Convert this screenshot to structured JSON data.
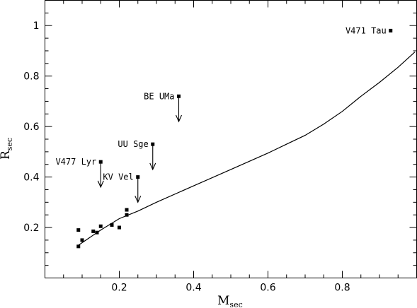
{
  "chart_data": {
    "type": "scatter",
    "xlabel": "M",
    "xlabel_sub": "sec",
    "ylabel": "R",
    "ylabel_sub": "sec",
    "xlim": [
      0.0,
      1.0
    ],
    "ylim": [
      0.0,
      1.1
    ],
    "xticks": [
      0.2,
      0.4,
      0.6,
      0.8
    ],
    "xtick_labels": [
      "0.2",
      "0.4",
      "0.6",
      "0.8"
    ],
    "yticks": [
      0.2,
      0.4,
      0.6,
      0.8,
      1.0
    ],
    "ytick_labels": [
      "0.2",
      "0.4",
      "0.6",
      "0.8",
      "1"
    ],
    "xminor": 0.05,
    "yminor": 0.05,
    "grid": false,
    "points": [
      {
        "x": 0.09,
        "y": 0.19
      },
      {
        "x": 0.09,
        "y": 0.125
      },
      {
        "x": 0.1,
        "y": 0.15
      },
      {
        "x": 0.13,
        "y": 0.185
      },
      {
        "x": 0.14,
        "y": 0.18
      },
      {
        "x": 0.15,
        "y": 0.205
      },
      {
        "x": 0.18,
        "y": 0.21
      },
      {
        "x": 0.2,
        "y": 0.2
      },
      {
        "x": 0.22,
        "y": 0.25
      },
      {
        "x": 0.22,
        "y": 0.27
      }
    ],
    "labeled_points": [
      {
        "label": "V471 Tau",
        "x": 0.93,
        "y": 0.98,
        "upper_limit": false
      },
      {
        "label": "BE UMa",
        "x": 0.36,
        "y": 0.72,
        "upper_limit": true
      },
      {
        "label": "UU Sge",
        "x": 0.29,
        "y": 0.53,
        "upper_limit": true
      },
      {
        "label": "V477 Lyr",
        "x": 0.15,
        "y": 0.46,
        "upper_limit": true
      },
      {
        "label": "KV Vel",
        "x": 0.25,
        "y": 0.4,
        "upper_limit": true
      }
    ],
    "curve": {
      "x": [
        0.09,
        0.15,
        0.2,
        0.25,
        0.3,
        0.4,
        0.5,
        0.6,
        0.65,
        0.7,
        0.75,
        0.8,
        0.85,
        0.9,
        0.95,
        0.995
      ],
      "y": [
        0.13,
        0.19,
        0.235,
        0.265,
        0.3,
        0.365,
        0.43,
        0.495,
        0.53,
        0.565,
        0.61,
        0.66,
        0.72,
        0.775,
        0.835,
        0.895
      ]
    }
  }
}
